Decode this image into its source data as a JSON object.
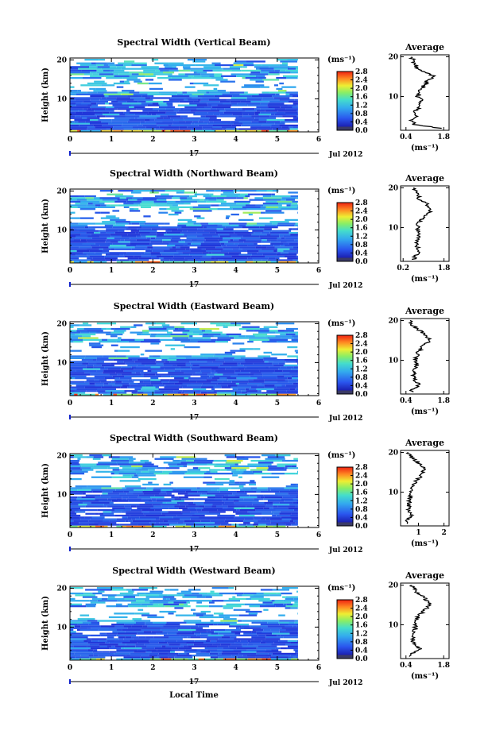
{
  "figure": {
    "xlabel": "Local Time",
    "date_day": "17",
    "date_month": "Jul 2012",
    "colorbar_unit": "(ms⁻¹)",
    "avg_title": "Average",
    "avg_xlabel": "(ms⁻¹)",
    "colors": {
      "background": "#ffffff",
      "low": "#2233cc",
      "mid": "#33ccee",
      "high": "#ee3311",
      "colorbar_bottom": "#3a3a66"
    }
  },
  "chart_data": [
    {
      "type": "heatmap",
      "title": "Spectral Width (Vertical Beam)",
      "xlabel": "Local Time",
      "ylabel": "Height (km)",
      "x_ticks": [
        "0",
        "1",
        "2",
        "3",
        "4",
        "5",
        "6"
      ],
      "y_ticks": [
        "10",
        "20"
      ],
      "xlim": [
        0,
        6
      ],
      "ylim": [
        1.5,
        20.5
      ],
      "data_xrange": [
        0,
        5.5
      ],
      "colorbar": {
        "label": "(ms⁻¹)",
        "ticks": [
          "0.0",
          "0.4",
          "0.8",
          "1.2",
          "1.6",
          "2.0",
          "2.4",
          "2.8"
        ],
        "range": [
          0,
          2.8
        ]
      },
      "average": {
        "title": "Average",
        "xlabel": "(ms⁻¹)",
        "x_ticks": [
          "0.4",
          "1.8"
        ],
        "xlim": [
          0.2,
          2.0
        ],
        "y_ticks": [
          "10",
          "20"
        ],
        "heights": [
          2,
          3,
          4,
          5,
          6,
          7,
          8,
          9,
          10,
          11,
          12,
          13,
          14,
          15,
          16,
          17,
          18,
          19,
          20
        ],
        "values": [
          1.7,
          0.7,
          0.6,
          0.75,
          0.7,
          0.85,
          0.9,
          1.0,
          0.85,
          0.9,
          1.0,
          1.1,
          1.2,
          1.5,
          1.15,
          0.85,
          0.75,
          0.7,
          0.6
        ]
      }
    },
    {
      "type": "heatmap",
      "title": "Spectral Width (Northward Beam)",
      "xlabel": "Local Time",
      "ylabel": "Height (km)",
      "x_ticks": [
        "0",
        "1",
        "2",
        "3",
        "4",
        "5",
        "6"
      ],
      "y_ticks": [
        "10",
        "20"
      ],
      "xlim": [
        0,
        6
      ],
      "ylim": [
        1.5,
        20.5
      ],
      "data_xrange": [
        0,
        5.5
      ],
      "colorbar": {
        "label": "(ms⁻¹)",
        "ticks": [
          "0.0",
          "0.4",
          "0.8",
          "1.2",
          "1.6",
          "2.0",
          "2.4",
          "2.8"
        ],
        "range": [
          0,
          2.8
        ]
      },
      "average": {
        "title": "Average",
        "xlabel": "(ms⁻¹)",
        "x_ticks": [
          "0.2",
          "1.8"
        ],
        "xlim": [
          0.1,
          2.0
        ],
        "y_ticks": [
          "10",
          "20"
        ],
        "heights": [
          2,
          3,
          4,
          5,
          6,
          7,
          8,
          9,
          10,
          11,
          12,
          13,
          14,
          15,
          16,
          17,
          18,
          19,
          20
        ],
        "values": [
          0.6,
          0.7,
          0.8,
          0.75,
          0.7,
          0.75,
          0.8,
          0.8,
          0.75,
          0.8,
          0.9,
          1.0,
          1.3,
          1.2,
          1.1,
          0.85,
          0.8,
          0.7,
          0.6
        ]
      }
    },
    {
      "type": "heatmap",
      "title": "Spectral Width (Eastward Beam)",
      "xlabel": "Local Time",
      "ylabel": "Height (km)",
      "x_ticks": [
        "0",
        "1",
        "2",
        "3",
        "4",
        "5",
        "6"
      ],
      "y_ticks": [
        "10",
        "20"
      ],
      "xlim": [
        0,
        6
      ],
      "ylim": [
        1.5,
        20.5
      ],
      "data_xrange": [
        0,
        5.5
      ],
      "colorbar": {
        "label": "(ms⁻¹)",
        "ticks": [
          "0.0",
          "0.4",
          "0.8",
          "1.2",
          "1.6",
          "2.0",
          "2.4",
          "2.8"
        ],
        "range": [
          0,
          2.8
        ]
      },
      "average": {
        "title": "Average",
        "xlabel": "(ms⁻¹)",
        "x_ticks": [
          "0.4",
          "1.8"
        ],
        "xlim": [
          0.2,
          2.0
        ],
        "y_ticks": [
          "10",
          "20"
        ],
        "heights": [
          2,
          3,
          4,
          5,
          6,
          7,
          8,
          9,
          10,
          11,
          12,
          13,
          14,
          15,
          16,
          17,
          18,
          19,
          20
        ],
        "values": [
          0.6,
          0.7,
          0.9,
          0.7,
          0.65,
          0.7,
          0.75,
          0.8,
          0.75,
          0.8,
          0.85,
          0.95,
          1.1,
          1.3,
          1.15,
          1.0,
          0.8,
          0.6,
          0.55
        ]
      }
    },
    {
      "type": "heatmap",
      "title": "Spectral Width (Southward Beam)",
      "xlabel": "Local Time",
      "ylabel": "Height (km)",
      "x_ticks": [
        "0",
        "1",
        "2",
        "3",
        "4",
        "5",
        "6"
      ],
      "y_ticks": [
        "10",
        "20"
      ],
      "xlim": [
        0,
        6
      ],
      "ylim": [
        1.5,
        20.5
      ],
      "data_xrange": [
        0,
        5.5
      ],
      "colorbar": {
        "label": "(ms⁻¹)",
        "ticks": [
          "0.0",
          "0.4",
          "0.8",
          "1.2",
          "1.6",
          "2.0",
          "2.4",
          "2.8"
        ],
        "range": [
          0,
          2.8
        ]
      },
      "average": {
        "title": "Average",
        "xlabel": "(ms⁻¹)",
        "x_ticks": [
          "1",
          "2"
        ],
        "xlim": [
          0.3,
          2.2
        ],
        "y_ticks": [
          "10",
          "20"
        ],
        "heights": [
          2,
          3,
          4,
          5,
          6,
          7,
          8,
          9,
          10,
          11,
          12,
          13,
          14,
          15,
          16,
          17,
          18,
          19,
          20
        ],
        "values": [
          0.55,
          0.6,
          0.75,
          0.6,
          0.6,
          0.65,
          0.65,
          0.7,
          0.7,
          0.75,
          0.8,
          0.95,
          1.1,
          1.2,
          1.25,
          1.05,
          0.9,
          0.7,
          0.6
        ]
      }
    },
    {
      "type": "heatmap",
      "title": "Spectral Width (Westward Beam)",
      "xlabel": "Local Time",
      "ylabel": "Height (km)",
      "x_ticks": [
        "0",
        "1",
        "2",
        "3",
        "4",
        "5",
        "6"
      ],
      "y_ticks": [
        "10",
        "20"
      ],
      "xlim": [
        0,
        6
      ],
      "ylim": [
        1.5,
        20.5
      ],
      "data_xrange": [
        0,
        5.5
      ],
      "colorbar": {
        "label": "(ms⁻¹)",
        "ticks": [
          "0.0",
          "0.4",
          "0.8",
          "1.2",
          "1.6",
          "2.0",
          "2.4",
          "2.8"
        ],
        "range": [
          0,
          2.8
        ]
      },
      "average": {
        "title": "Average",
        "xlabel": "(ms⁻¹)",
        "x_ticks": [
          "0.4",
          "1.8"
        ],
        "xlim": [
          0.2,
          2.0
        ],
        "y_ticks": [
          "10",
          "20"
        ],
        "heights": [
          2,
          3,
          4,
          5,
          6,
          7,
          8,
          9,
          10,
          11,
          12,
          13,
          14,
          15,
          16,
          17,
          18,
          19,
          20
        ],
        "values": [
          0.6,
          0.65,
          0.9,
          0.7,
          0.65,
          0.7,
          0.7,
          0.75,
          0.75,
          0.8,
          0.85,
          1.0,
          1.1,
          1.35,
          1.2,
          1.05,
          0.85,
          0.7,
          0.6
        ]
      }
    }
  ]
}
